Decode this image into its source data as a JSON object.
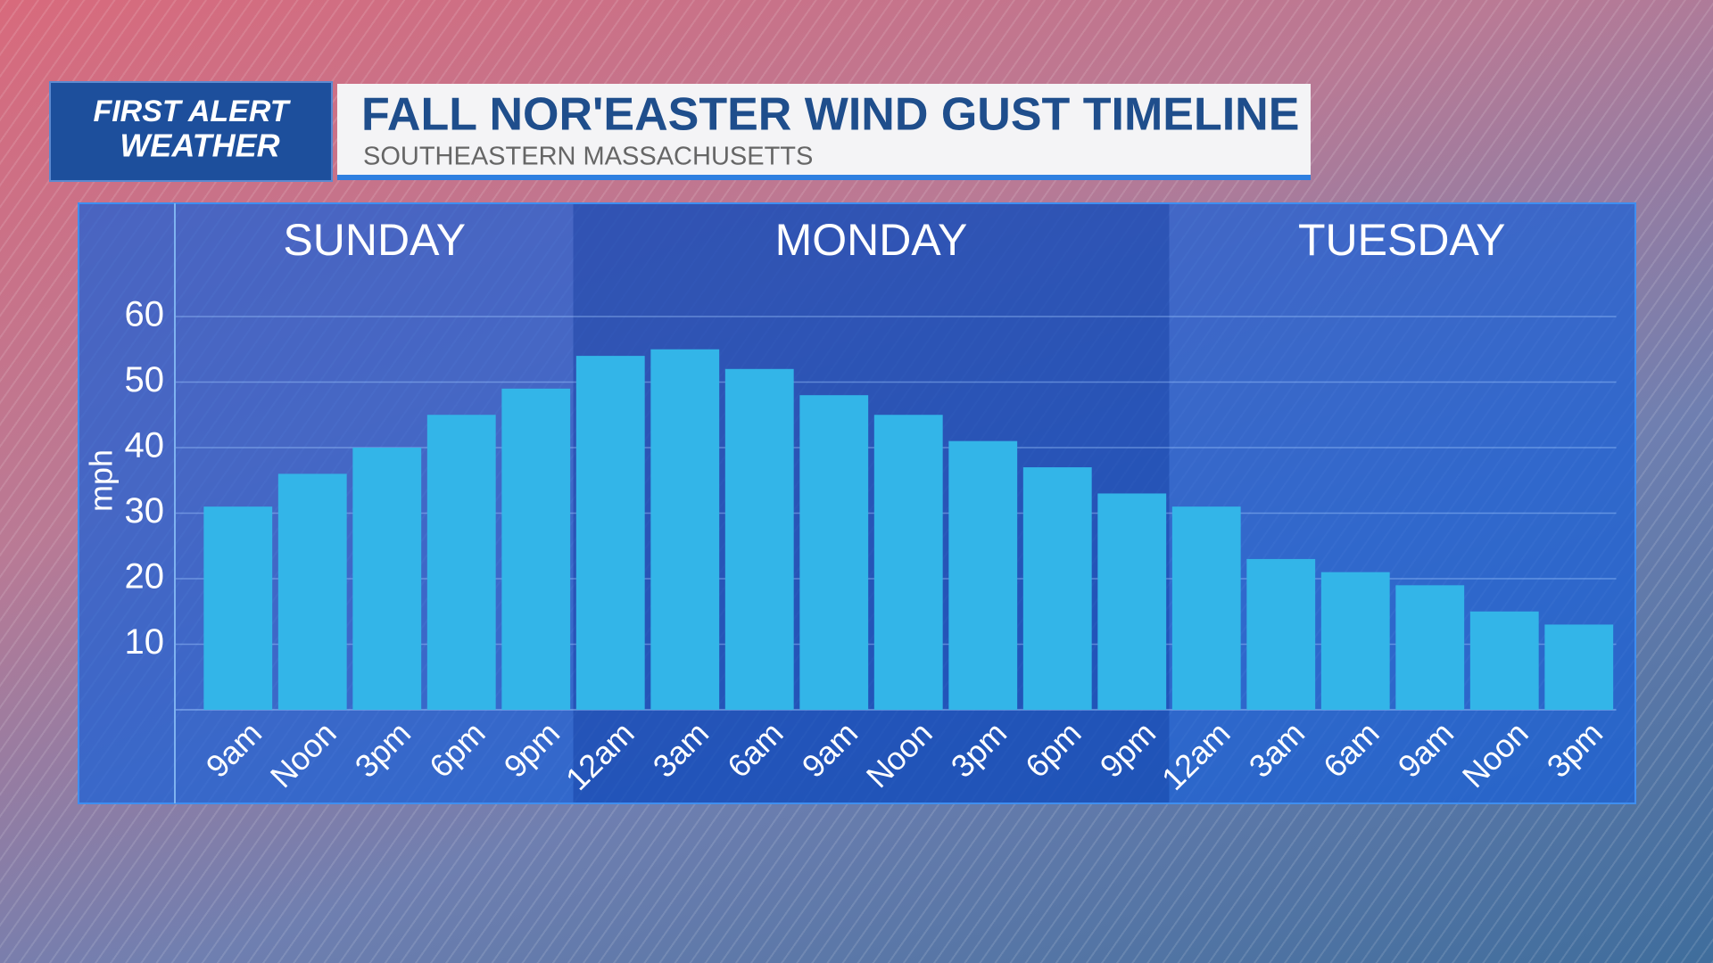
{
  "header": {
    "logo_line1": "FIRST ALERT",
    "logo_line2": "WEATHER"
  },
  "chart_data": {
    "type": "bar",
    "title": "FALL NOR'EASTER WIND GUST TIMELINE",
    "subtitle": "SOUTHEASTERN MASSACHUSETTS",
    "y_label": "mph",
    "day_labels": [
      "SUNDAY",
      "MONDAY",
      "TUESDAY"
    ],
    "categories": [
      "9am",
      "Noon",
      "3pm",
      "6pm",
      "9pm",
      "12am",
      "3am",
      "6am",
      "9am",
      "Noon",
      "3pm",
      "6pm",
      "9pm",
      "12am",
      "3am",
      "6am",
      "9am",
      "Noon",
      "3pm"
    ],
    "values": [
      31,
      36,
      40,
      45,
      49,
      54,
      55,
      52,
      48,
      45,
      41,
      37,
      33,
      31,
      23,
      21,
      19,
      15,
      13
    ],
    "color": "#33b5e8",
    "ylim": [
      0,
      60
    ],
    "yticks": [
      10,
      20,
      30,
      40,
      50,
      60
    ],
    "grid": true
  }
}
